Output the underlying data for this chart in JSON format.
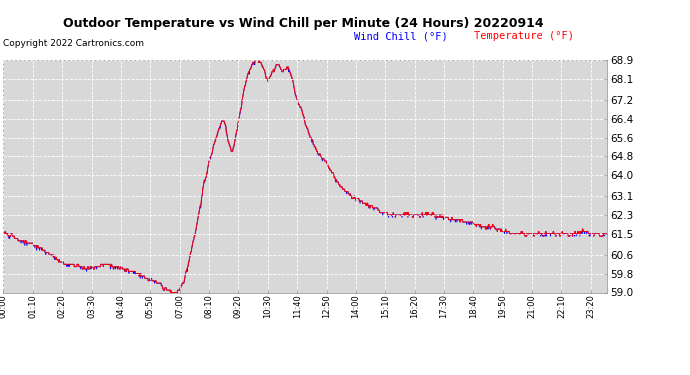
{
  "title": "Outdoor Temperature vs Wind Chill per Minute (24 Hours) 20220914",
  "copyright": "Copyright 2022 Cartronics.com",
  "legend_wind_chill": "Wind Chill (°F)",
  "legend_temperature": "Temperature (°F)",
  "ylim": [
    59.0,
    68.9
  ],
  "yticks": [
    59.0,
    59.8,
    60.6,
    61.5,
    62.3,
    63.1,
    64.0,
    64.8,
    65.6,
    66.4,
    67.2,
    68.1,
    68.9
  ],
  "bg_color": "#ffffff",
  "plot_bg_color": "#d8d8d8",
  "grid_color": "#ffffff",
  "wind_chill_color": "#0000ff",
  "temp_color": "#ff0000",
  "num_points": 1440,
  "x_tick_step": 70,
  "curve_keypoints": [
    [
      0,
      61.5
    ],
    [
      20,
      61.5
    ],
    [
      30,
      61.3
    ],
    [
      60,
      61.1
    ],
    [
      90,
      60.9
    ],
    [
      120,
      60.5
    ],
    [
      150,
      60.2
    ],
    [
      180,
      60.1
    ],
    [
      210,
      60.0
    ],
    [
      240,
      60.2
    ],
    [
      270,
      60.1
    ],
    [
      300,
      59.9
    ],
    [
      315,
      59.8
    ],
    [
      330,
      59.7
    ],
    [
      345,
      59.6
    ],
    [
      360,
      59.5
    ],
    [
      375,
      59.3
    ],
    [
      390,
      59.1
    ],
    [
      400,
      59.05
    ],
    [
      410,
      59.0
    ],
    [
      420,
      59.05
    ],
    [
      430,
      59.5
    ],
    [
      440,
      60.2
    ],
    [
      450,
      61.0
    ],
    [
      460,
      61.8
    ],
    [
      470,
      62.8
    ],
    [
      480,
      63.8
    ],
    [
      490,
      64.5
    ],
    [
      500,
      65.2
    ],
    [
      510,
      65.8
    ],
    [
      515,
      66.0
    ],
    [
      520,
      66.3
    ],
    [
      525,
      66.4
    ],
    [
      530,
      66.1
    ],
    [
      535,
      65.5
    ],
    [
      540,
      65.2
    ],
    [
      545,
      65.0
    ],
    [
      550,
      65.3
    ],
    [
      555,
      65.8
    ],
    [
      560,
      66.2
    ],
    [
      565,
      66.8
    ],
    [
      570,
      67.3
    ],
    [
      575,
      67.8
    ],
    [
      580,
      68.1
    ],
    [
      585,
      68.4
    ],
    [
      590,
      68.6
    ],
    [
      595,
      68.8
    ],
    [
      600,
      68.85
    ],
    [
      605,
      68.9
    ],
    [
      610,
      68.85
    ],
    [
      615,
      68.7
    ],
    [
      620,
      68.5
    ],
    [
      625,
      68.2
    ],
    [
      630,
      68.0
    ],
    [
      635,
      68.2
    ],
    [
      640,
      68.4
    ],
    [
      645,
      68.5
    ],
    [
      650,
      68.6
    ],
    [
      655,
      68.7
    ],
    [
      660,
      68.6
    ],
    [
      665,
      68.4
    ],
    [
      670,
      68.5
    ],
    [
      675,
      68.6
    ],
    [
      680,
      68.5
    ],
    [
      685,
      68.3
    ],
    [
      690,
      68.0
    ],
    [
      695,
      67.5
    ],
    [
      700,
      67.2
    ],
    [
      705,
      67.0
    ],
    [
      710,
      66.8
    ],
    [
      715,
      66.5
    ],
    [
      720,
      66.2
    ],
    [
      730,
      65.7
    ],
    [
      740,
      65.3
    ],
    [
      750,
      65.0
    ],
    [
      760,
      64.7
    ],
    [
      770,
      64.5
    ],
    [
      780,
      64.2
    ],
    [
      790,
      63.9
    ],
    [
      800,
      63.6
    ],
    [
      810,
      63.4
    ],
    [
      820,
      63.2
    ],
    [
      830,
      63.1
    ],
    [
      840,
      63.0
    ],
    [
      850,
      62.9
    ],
    [
      860,
      62.8
    ],
    [
      870,
      62.7
    ],
    [
      880,
      62.6
    ],
    [
      890,
      62.5
    ],
    [
      900,
      62.4
    ],
    [
      910,
      62.35
    ],
    [
      920,
      62.3
    ],
    [
      930,
      62.3
    ],
    [
      960,
      62.3
    ],
    [
      990,
      62.3
    ],
    [
      1020,
      62.3
    ],
    [
      1050,
      62.2
    ],
    [
      1080,
      62.1
    ],
    [
      1100,
      62.0
    ],
    [
      1120,
      61.9
    ],
    [
      1140,
      61.8
    ],
    [
      1160,
      61.8
    ],
    [
      1180,
      61.7
    ],
    [
      1200,
      61.6
    ],
    [
      1220,
      61.5
    ],
    [
      1260,
      61.5
    ],
    [
      1300,
      61.5
    ],
    [
      1350,
      61.5
    ],
    [
      1380,
      61.6
    ],
    [
      1400,
      61.5
    ],
    [
      1420,
      61.4
    ],
    [
      1439,
      61.5
    ]
  ]
}
